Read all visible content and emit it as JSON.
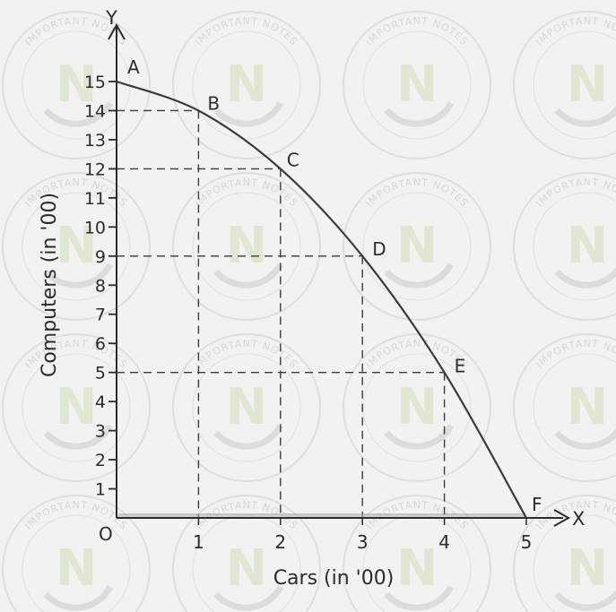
{
  "chart_data": {
    "type": "line",
    "title": "",
    "xlabel": "Cars (in '00)",
    "ylabel": "Computers (in '00)",
    "x_axis_letter": "X",
    "y_axis_letter": "Y",
    "origin_label": "O",
    "xlim": [
      0,
      5
    ],
    "ylim": [
      0,
      15
    ],
    "x_ticks": [
      1,
      2,
      3,
      4,
      5
    ],
    "y_ticks": [
      1,
      2,
      3,
      4,
      5,
      6,
      7,
      8,
      9,
      10,
      11,
      12,
      13,
      14,
      15
    ],
    "grid": false,
    "legend": "none",
    "curve_color": "#3a3a3a",
    "dashed_guides": true,
    "points": [
      {
        "label": "A",
        "x": 0,
        "y": 15
      },
      {
        "label": "B",
        "x": 1,
        "y": 14
      },
      {
        "label": "C",
        "x": 2,
        "y": 12
      },
      {
        "label": "D",
        "x": 3,
        "y": 9
      },
      {
        "label": "E",
        "x": 4,
        "y": 5
      },
      {
        "label": "F",
        "x": 5,
        "y": 0
      }
    ]
  },
  "watermark": {
    "text": "IMPORTANT NOTES",
    "logo_letter": "N"
  }
}
